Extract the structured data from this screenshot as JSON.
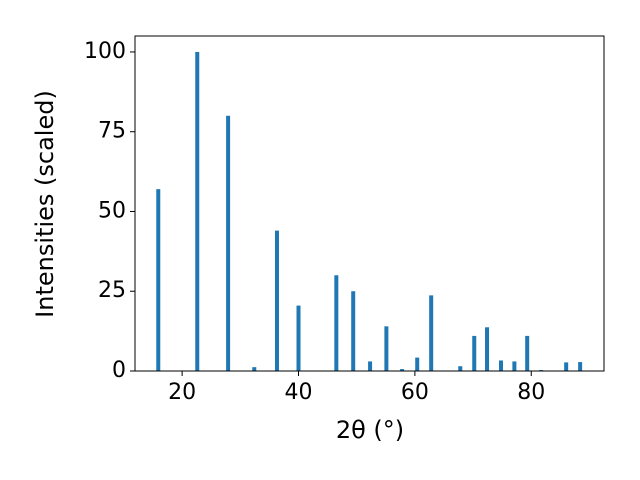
{
  "chart_data": {
    "type": "bar",
    "xlabel": "2θ (°)",
    "ylabel": "Intensities (scaled)",
    "x": [
      15.9,
      22.6,
      27.9,
      32.4,
      36.3,
      40.0,
      46.5,
      49.4,
      52.3,
      55.1,
      57.8,
      60.4,
      62.8,
      67.8,
      70.2,
      72.4,
      74.8,
      77.1,
      79.3,
      81.7,
      86.0,
      88.4
    ],
    "values": [
      57,
      100,
      80,
      1.2,
      44,
      20.5,
      30,
      25,
      3,
      14,
      0.6,
      4.2,
      23.7,
      1.5,
      11,
      13.7,
      3.3,
      3,
      11,
      0.3,
      2.7,
      2.8
    ],
    "color": "#1f77b4",
    "xlim": [
      11.9,
      92.5
    ],
    "xticks": [
      20,
      40,
      60,
      80
    ],
    "ylim": [
      0,
      105
    ],
    "yticks": [
      0,
      25,
      50,
      75,
      100
    ],
    "grid": false
  }
}
